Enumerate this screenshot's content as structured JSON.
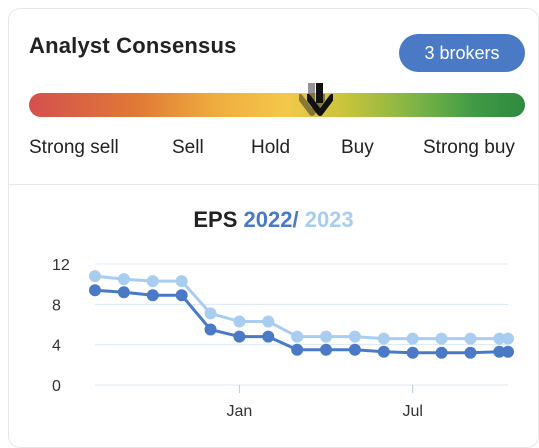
{
  "card": {
    "title": "Analyst Consensus",
    "brokers_label": "3 brokers"
  },
  "gauge": {
    "labels": [
      "Strong sell",
      "Sell",
      "Hold",
      "Buy",
      "Strong buy"
    ],
    "colors": [
      "#d4504f",
      "#e07a35",
      "#f2c84a",
      "#7db447",
      "#2e8a3f"
    ]
  },
  "eps": {
    "prefix": "EPS",
    "year1": "2022",
    "sep": "/",
    "year2": "2023"
  },
  "chart_data": {
    "type": "line",
    "ylim": [
      0,
      12
    ],
    "yticks": [
      "12",
      "8",
      "4",
      "0"
    ],
    "ytick_values": [
      12,
      8,
      4,
      0
    ],
    "xticks": [
      "Jan",
      "Jul"
    ],
    "xtick_values": [
      5,
      11
    ],
    "series": [
      {
        "name": "2023",
        "color": "#a9cdf1",
        "x": [
          0,
          1,
          2,
          3,
          4,
          5,
          6,
          7,
          8,
          9,
          10,
          11,
          12,
          13,
          14,
          14.3
        ],
        "y": [
          10.8,
          10.5,
          10.3,
          10.3,
          7.1,
          6.3,
          6.3,
          4.8,
          4.8,
          4.8,
          4.6,
          4.6,
          4.6,
          4.6,
          4.6,
          4.6
        ]
      },
      {
        "name": "2022",
        "color": "#4a7ac6",
        "x": [
          0,
          1,
          2,
          3,
          4,
          5,
          6,
          7,
          8,
          9,
          10,
          11,
          12,
          13,
          14,
          14.3
        ],
        "y": [
          9.4,
          9.2,
          8.9,
          8.9,
          5.5,
          4.8,
          4.8,
          3.5,
          3.5,
          3.5,
          3.3,
          3.2,
          3.2,
          3.2,
          3.3,
          3.3
        ]
      }
    ]
  }
}
